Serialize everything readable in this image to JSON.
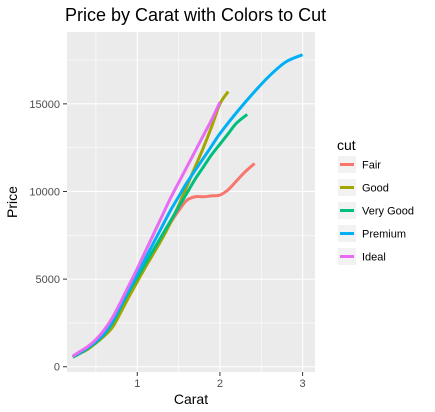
{
  "chart_data": {
    "type": "line",
    "title": "Price by Carat with Colors to Cut",
    "xlabel": "Carat",
    "ylabel": "Price",
    "xlim": [
      0.15,
      3.15
    ],
    "ylim": [
      -300,
      19100
    ],
    "x_ticks": [
      1,
      2,
      3
    ],
    "x_tick_labels": [
      "1",
      "2",
      "3"
    ],
    "y_ticks": [
      0,
      5000,
      10000,
      15000
    ],
    "y_tick_labels": [
      "0",
      "5000",
      "10000",
      "15000"
    ],
    "grid": true,
    "legend": {
      "title": "cut",
      "position": "right"
    },
    "series": [
      {
        "name": "Fair",
        "color": "#F8766D",
        "points": [
          [
            0.22,
            550
          ],
          [
            0.3,
            750
          ],
          [
            0.4,
            1000
          ],
          [
            0.5,
            1400
          ],
          [
            0.6,
            1800
          ],
          [
            0.7,
            2300
          ],
          [
            0.8,
            3200
          ],
          [
            0.9,
            4100
          ],
          [
            1.0,
            4900
          ],
          [
            1.1,
            5700
          ],
          [
            1.2,
            6500
          ],
          [
            1.3,
            7400
          ],
          [
            1.4,
            8200
          ],
          [
            1.5,
            8900
          ],
          [
            1.6,
            9500
          ],
          [
            1.7,
            9700
          ],
          [
            1.8,
            9700
          ],
          [
            1.9,
            9750
          ],
          [
            2.0,
            9800
          ],
          [
            2.1,
            10100
          ],
          [
            2.2,
            10600
          ],
          [
            2.3,
            11100
          ],
          [
            2.42,
            11600
          ]
        ]
      },
      {
        "name": "Good",
        "color": "#A3A500",
        "points": [
          [
            0.22,
            550
          ],
          [
            0.3,
            750
          ],
          [
            0.4,
            1000
          ],
          [
            0.5,
            1350
          ],
          [
            0.6,
            1750
          ],
          [
            0.7,
            2250
          ],
          [
            0.8,
            3100
          ],
          [
            0.9,
            4000
          ],
          [
            1.0,
            4850
          ],
          [
            1.1,
            5700
          ],
          [
            1.2,
            6500
          ],
          [
            1.3,
            7300
          ],
          [
            1.4,
            8200
          ],
          [
            1.5,
            9200
          ],
          [
            1.6,
            10300
          ],
          [
            1.7,
            11400
          ],
          [
            1.8,
            12500
          ],
          [
            1.9,
            13700
          ],
          [
            2.0,
            15000
          ],
          [
            2.1,
            15700
          ]
        ]
      },
      {
        "name": "Very Good",
        "color": "#00BF7D",
        "points": [
          [
            0.22,
            550
          ],
          [
            0.3,
            750
          ],
          [
            0.4,
            1050
          ],
          [
            0.5,
            1400
          ],
          [
            0.6,
            1850
          ],
          [
            0.7,
            2500
          ],
          [
            0.8,
            3400
          ],
          [
            0.9,
            4300
          ],
          [
            1.0,
            5100
          ],
          [
            1.1,
            5900
          ],
          [
            1.2,
            6700
          ],
          [
            1.3,
            7500
          ],
          [
            1.4,
            8300
          ],
          [
            1.5,
            9100
          ],
          [
            1.6,
            9900
          ],
          [
            1.7,
            10700
          ],
          [
            1.8,
            11400
          ],
          [
            1.9,
            12100
          ],
          [
            2.0,
            12700
          ],
          [
            2.1,
            13300
          ],
          [
            2.2,
            13900
          ],
          [
            2.33,
            14400
          ]
        ]
      },
      {
        "name": "Premium",
        "color": "#00B0F6",
        "points": [
          [
            0.22,
            600
          ],
          [
            0.3,
            800
          ],
          [
            0.4,
            1100
          ],
          [
            0.5,
            1450
          ],
          [
            0.6,
            1900
          ],
          [
            0.7,
            2600
          ],
          [
            0.8,
            3500
          ],
          [
            0.9,
            4400
          ],
          [
            1.0,
            5300
          ],
          [
            1.1,
            6200
          ],
          [
            1.2,
            7100
          ],
          [
            1.3,
            8000
          ],
          [
            1.4,
            8900
          ],
          [
            1.5,
            9700
          ],
          [
            1.6,
            10500
          ],
          [
            1.7,
            11200
          ],
          [
            1.8,
            11900
          ],
          [
            1.9,
            12600
          ],
          [
            2.0,
            13300
          ],
          [
            2.2,
            14500
          ],
          [
            2.4,
            15600
          ],
          [
            2.6,
            16600
          ],
          [
            2.8,
            17400
          ],
          [
            3.0,
            17800
          ]
        ]
      },
      {
        "name": "Ideal",
        "color": "#E76BF3",
        "points": [
          [
            0.22,
            600
          ],
          [
            0.3,
            850
          ],
          [
            0.4,
            1150
          ],
          [
            0.5,
            1550
          ],
          [
            0.6,
            2100
          ],
          [
            0.7,
            2800
          ],
          [
            0.8,
            3700
          ],
          [
            0.9,
            4650
          ],
          [
            1.0,
            5600
          ],
          [
            1.1,
            6600
          ],
          [
            1.2,
            7600
          ],
          [
            1.3,
            8600
          ],
          [
            1.4,
            9600
          ],
          [
            1.5,
            10500
          ],
          [
            1.6,
            11400
          ],
          [
            1.7,
            12300
          ],
          [
            1.8,
            13200
          ],
          [
            1.9,
            14100
          ],
          [
            2.0,
            15100
          ]
        ]
      }
    ]
  }
}
